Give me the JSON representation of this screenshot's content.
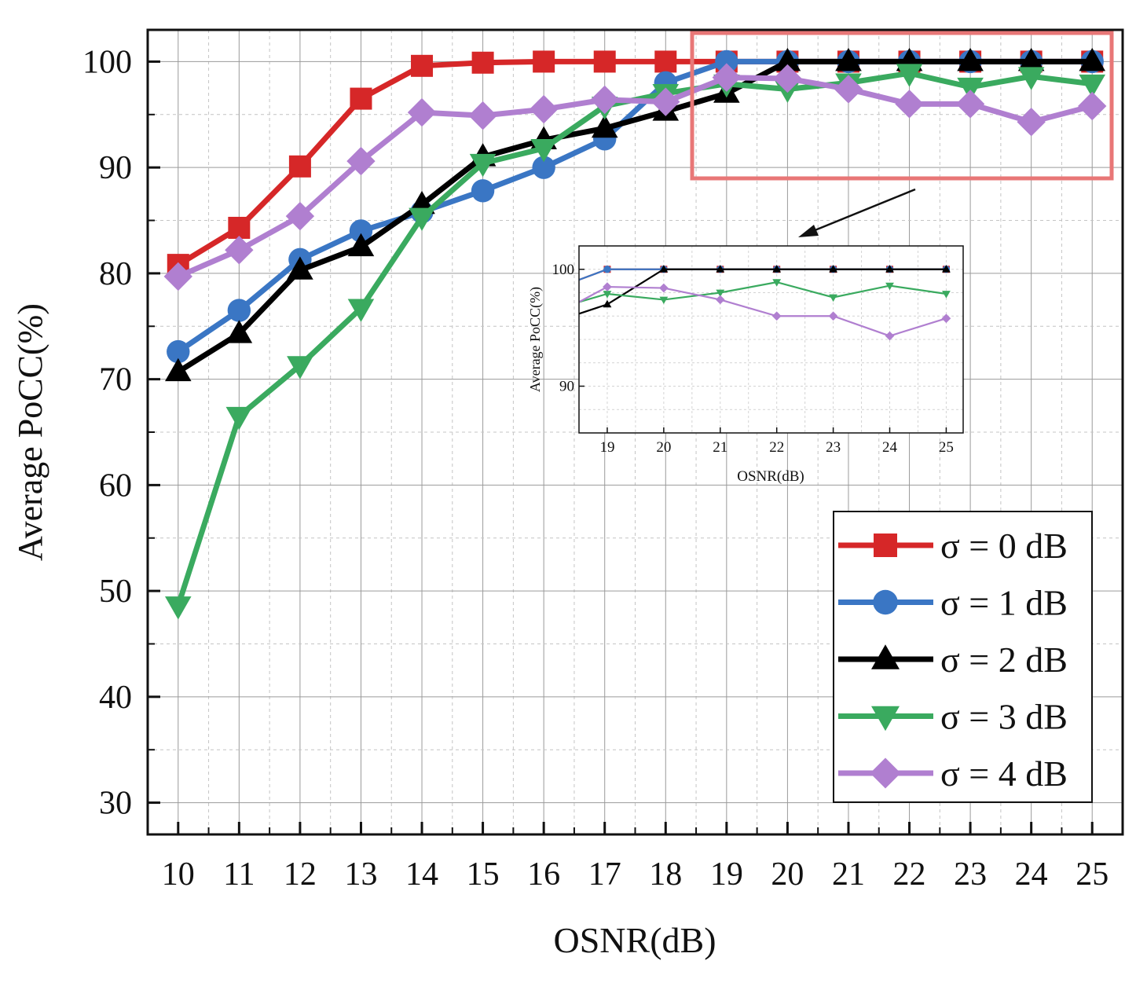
{
  "chart_data": {
    "type": "line",
    "xlabel": "OSNR(dB)",
    "ylabel": "Average PoCC(%)",
    "x": [
      10,
      11,
      12,
      13,
      14,
      15,
      16,
      17,
      18,
      19,
      20,
      21,
      22,
      23,
      24,
      25
    ],
    "xlim": [
      9.5,
      25.5
    ],
    "ylim": [
      27,
      103
    ],
    "xticks": [
      "10",
      "11",
      "12",
      "13",
      "14",
      "15",
      "16",
      "17",
      "18",
      "19",
      "20",
      "21",
      "22",
      "23",
      "24",
      "25"
    ],
    "yticks": [
      "30",
      "40",
      "50",
      "60",
      "70",
      "80",
      "90",
      "100"
    ],
    "grid": true,
    "legend_position": "bottom-right",
    "series": [
      {
        "name": "σ = 0 dB",
        "color": "#d62728",
        "marker": "square",
        "values": [
          80.8,
          84.3,
          90.1,
          96.5,
          99.6,
          99.9,
          100,
          100,
          100,
          100,
          100,
          100,
          100,
          100,
          100,
          100
        ]
      },
      {
        "name": "σ = 1 dB",
        "color": "#3a76c4",
        "marker": "circle",
        "values": [
          72.6,
          76.5,
          81.3,
          84.0,
          85.8,
          87.8,
          90.0,
          92.7,
          98.0,
          100,
          100,
          100,
          100,
          100,
          100,
          100
        ]
      },
      {
        "name": "σ = 2 dB",
        "color": "#000000",
        "marker": "triangle-up",
        "values": [
          70.7,
          74.3,
          80.3,
          82.5,
          86.5,
          91.0,
          92.6,
          93.7,
          95.3,
          97.0,
          100,
          100,
          100,
          100,
          100,
          100
        ]
      },
      {
        "name": "σ = 3 dB",
        "color": "#3aaa5f",
        "marker": "triangle-down",
        "values": [
          48.6,
          66.5,
          71.3,
          76.7,
          85.3,
          90.4,
          91.8,
          95.8,
          97.0,
          97.9,
          97.4,
          98.0,
          98.9,
          97.6,
          98.6,
          97.9
        ]
      },
      {
        "name": "σ = 4 dB",
        "color": "#b07fd0",
        "marker": "diamond",
        "values": [
          79.7,
          82.2,
          85.4,
          90.6,
          95.2,
          94.9,
          95.5,
          96.4,
          96.2,
          98.5,
          98.4,
          97.4,
          96.0,
          96.0,
          94.3,
          95.8
        ]
      }
    ],
    "inset": {
      "xlabel": "OSNR(dB)",
      "ylabel": "Average PoCC(%)",
      "xlim": [
        18.5,
        25.3
      ],
      "ylim": [
        86,
        102
      ],
      "xticks": [
        "19",
        "20",
        "21",
        "22",
        "23",
        "24",
        "25"
      ],
      "yticks": [
        "90",
        "100"
      ],
      "series_start": [
        {
          "x": 18.5,
          "y": 99.1
        },
        {
          "x": 18.5,
          "y": 99.1
        },
        {
          "x": 18.5,
          "y": 96.2
        },
        {
          "x": 18.5,
          "y": 97.2
        },
        {
          "x": 18.5,
          "y": 97.2
        }
      ]
    }
  }
}
